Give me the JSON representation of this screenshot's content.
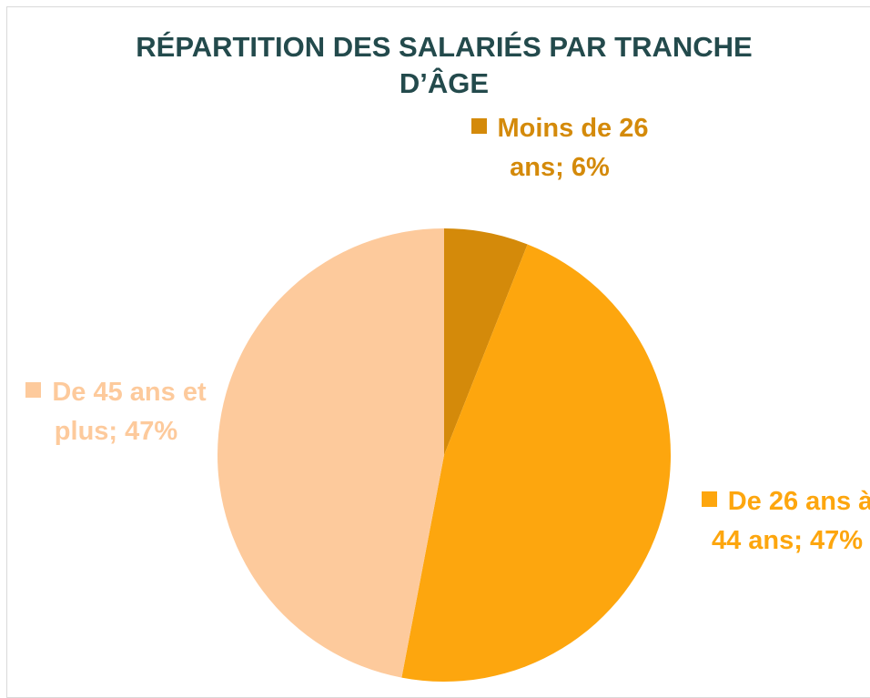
{
  "chart_data": {
    "type": "pie",
    "title": "RÉPARTITION DES SALARIÉS PAR TRANCHE D’ÂGE",
    "categories": [
      "Moins de 26 ans",
      "De 26 ans à 44 ans",
      "De 45 ans et plus"
    ],
    "values": [
      6,
      47,
      47
    ],
    "value_labels": [
      "6%",
      "47%",
      "47%"
    ],
    "label_separator": ";",
    "colors": [
      "#d48a0a",
      "#fda60e",
      "#fdca9c"
    ]
  }
}
